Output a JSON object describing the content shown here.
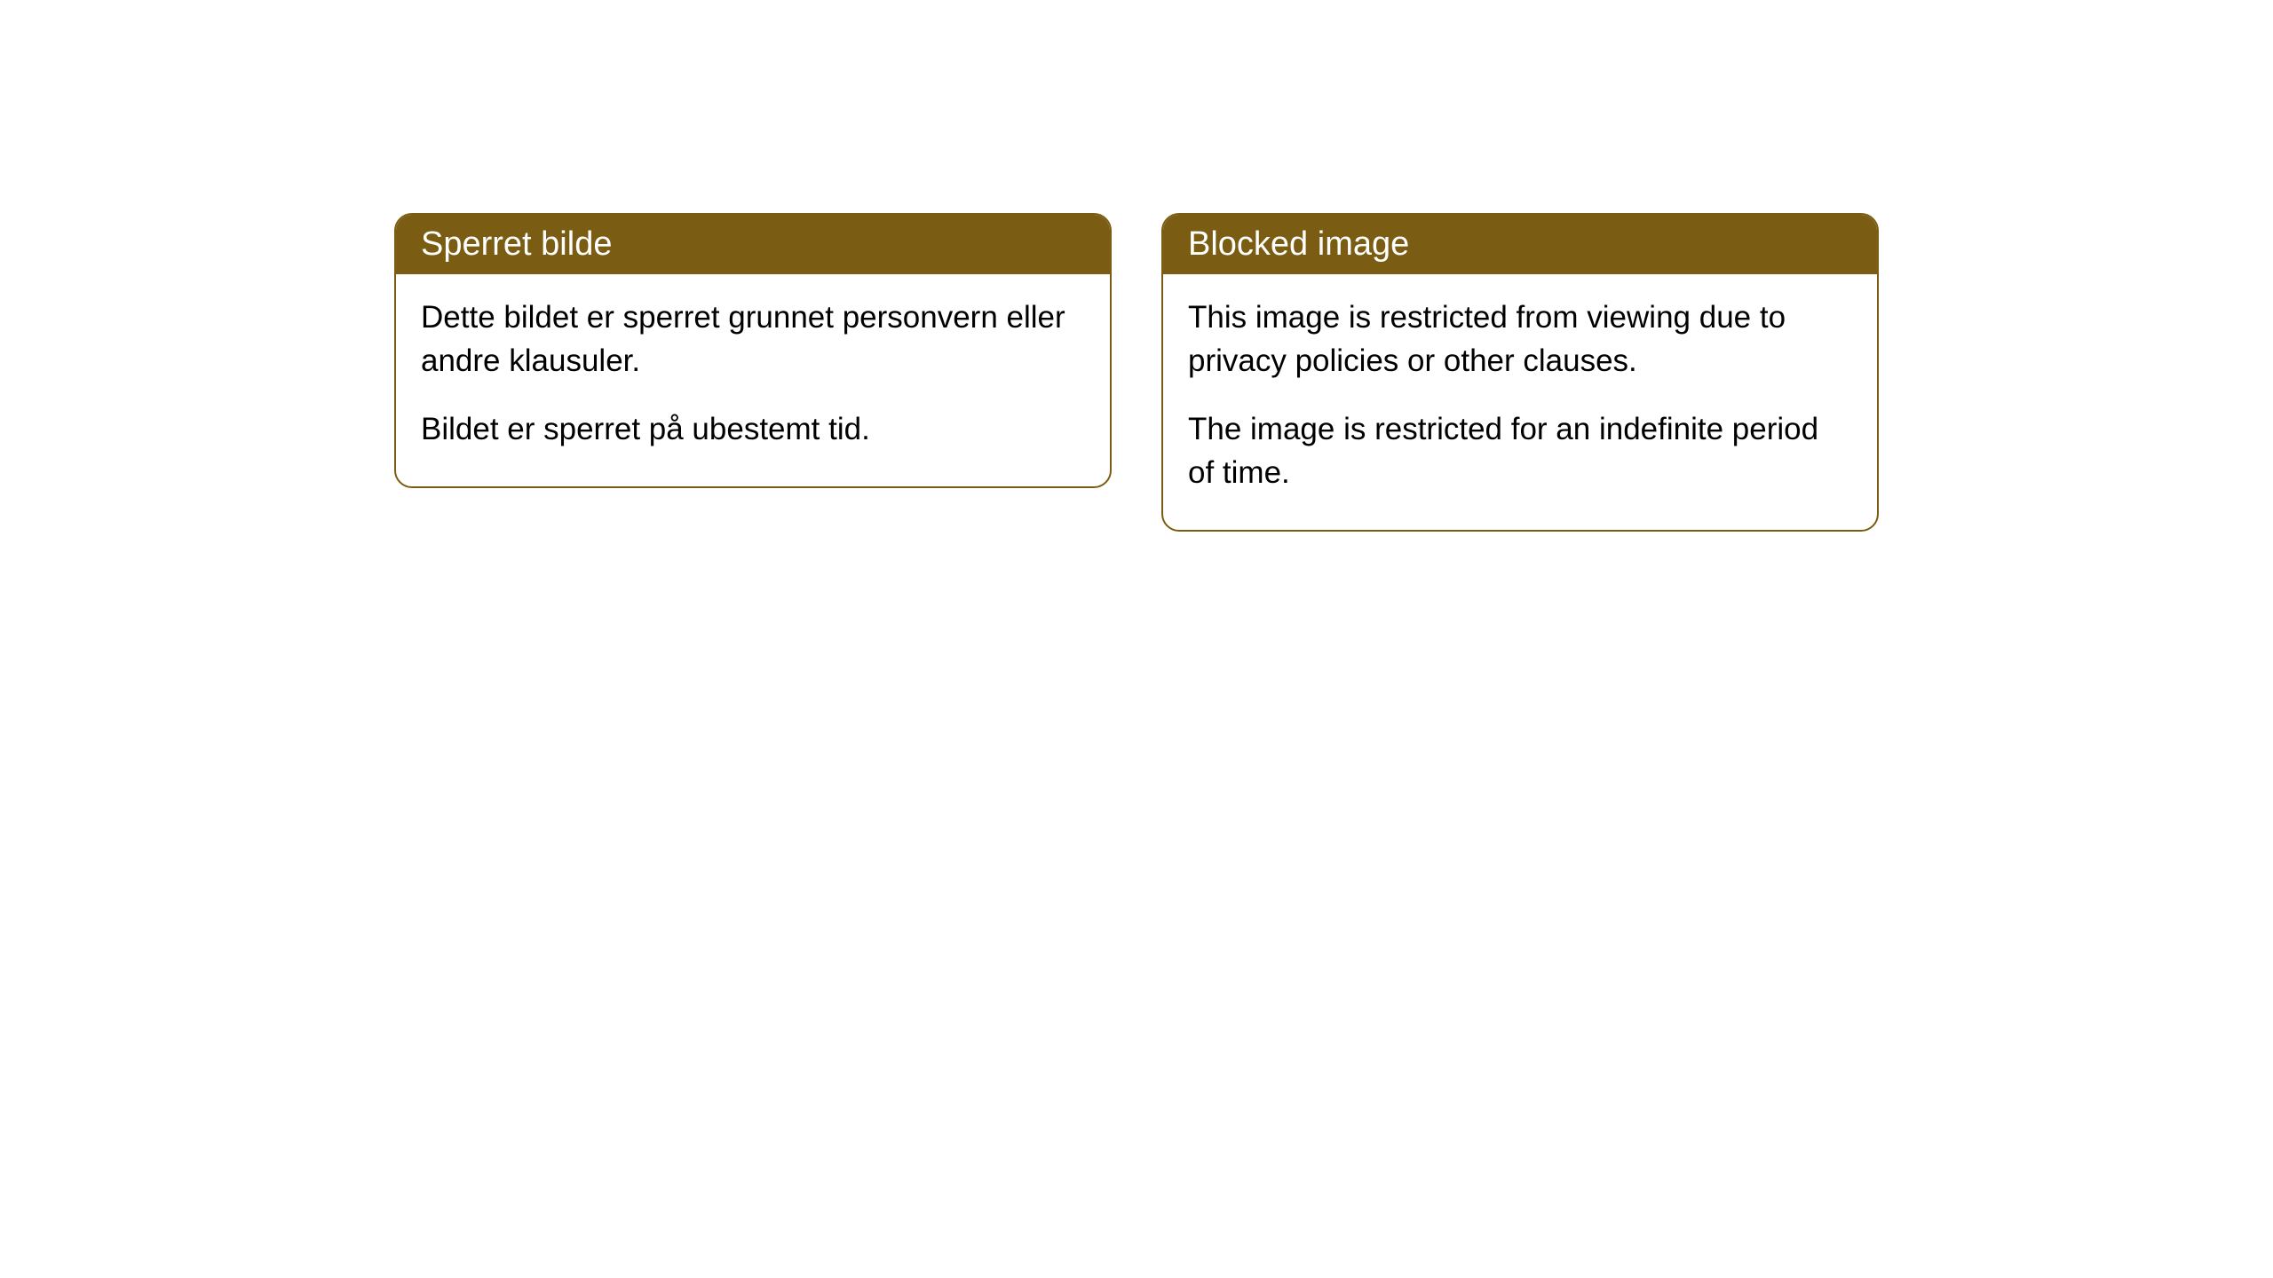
{
  "cards": [
    {
      "title": "Sperret bilde",
      "paragraph1": "Dette bildet er sperret grunnet personvern eller andre klausuler.",
      "paragraph2": "Bildet er sperret på ubestemt tid."
    },
    {
      "title": "Blocked image",
      "paragraph1": "This image is restricted from viewing due to privacy policies or other clauses.",
      "paragraph2": "The image is restricted for an indefinite period of time."
    }
  ],
  "style": {
    "header_background": "#7a5c12",
    "header_text_color": "#ffffff",
    "border_color": "#7a5c12",
    "body_background": "#ffffff",
    "body_text_color": "#000000",
    "border_radius": 20,
    "title_fontsize": 38,
    "body_fontsize": 35
  }
}
